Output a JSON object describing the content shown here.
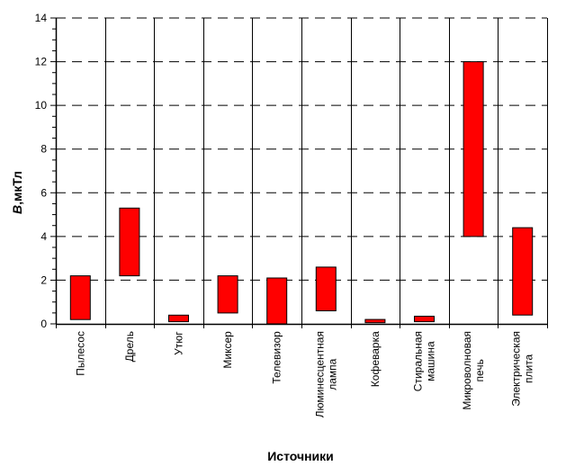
{
  "chart_data": {
    "type": "bar",
    "subtype": "floating-range",
    "xlabel": "Источники",
    "ylabel_symbol": "B",
    "ylabel_unit": ",мкТл",
    "ylim": [
      0,
      14
    ],
    "yticks": [
      0,
      2,
      4,
      6,
      8,
      10,
      12,
      14
    ],
    "ytick_labels": [
      "0",
      "2",
      "4",
      "6",
      "8",
      "10",
      "12",
      "14"
    ],
    "grid": "horizontal-dashed",
    "categories": [
      [
        "Пылесос"
      ],
      [
        "Дрель"
      ],
      [
        "Утюг"
      ],
      [
        "Миксер"
      ],
      [
        "Телевизор"
      ],
      [
        "Люминесцентная",
        "лампа"
      ],
      [
        "Кофеварка"
      ],
      [
        "Стиральная",
        "машина"
      ],
      [
        "Микроволновая",
        "печь"
      ],
      [
        "Электрическая",
        "плита"
      ]
    ],
    "ranges": [
      [
        0.2,
        2.2
      ],
      [
        2.2,
        5.3
      ],
      [
        0.1,
        0.4
      ],
      [
        0.5,
        2.2
      ],
      [
        0.0,
        2.1
      ],
      [
        0.6,
        2.6
      ],
      [
        0.05,
        0.2
      ],
      [
        0.1,
        0.35
      ],
      [
        4.0,
        12.0
      ],
      [
        0.4,
        4.4
      ]
    ],
    "bar_color": "#ff0000"
  }
}
